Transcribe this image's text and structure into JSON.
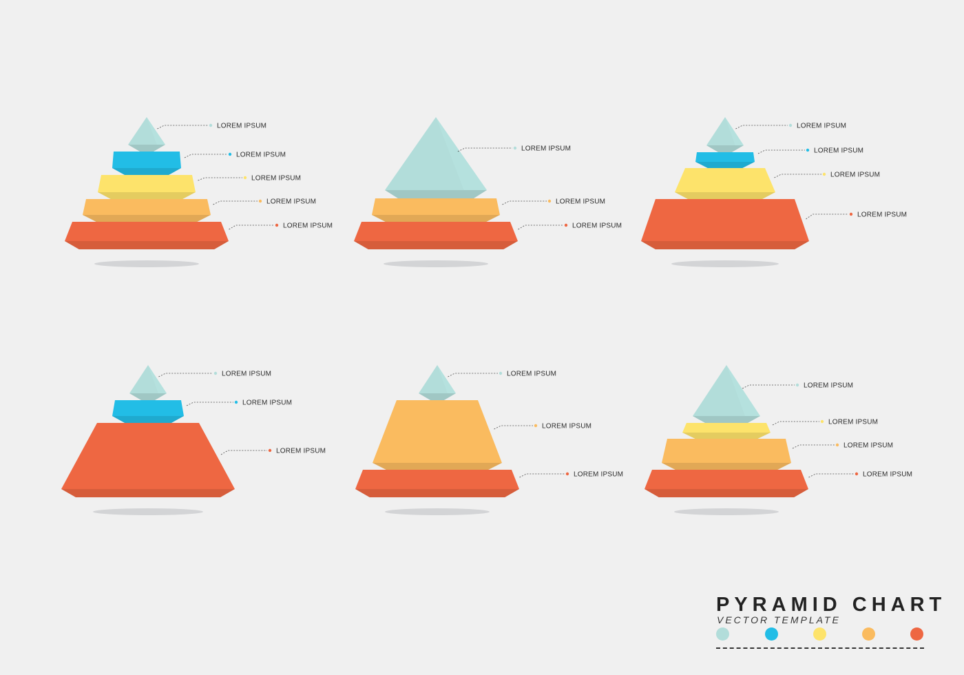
{
  "colors": {
    "teal": "#b2ddda",
    "blue": "#22bde6",
    "yellow": "#fde36b",
    "orange": "#fabb5f",
    "red": "#ee6742",
    "shadow": "#d3d4d6",
    "leader": "#4a4a4a"
  },
  "pyramids": [
    {
      "name": "pyramid-1",
      "tiers": [
        {
          "color": "teal",
          "label": "LOREM IPSUM"
        },
        {
          "color": "blue",
          "label": "LOREM IPSUM"
        },
        {
          "color": "yellow",
          "label": "LOREM IPSUM"
        },
        {
          "color": "orange",
          "label": "LOREM IPSUM"
        },
        {
          "color": "red",
          "label": "LOREM IPSUM"
        }
      ]
    },
    {
      "name": "pyramid-2",
      "tiers": [
        {
          "color": "teal",
          "label": "LOREM IPSUM"
        },
        {
          "color": "orange",
          "label": "LOREM IPSUM"
        },
        {
          "color": "red",
          "label": "LOREM IPSUM"
        }
      ]
    },
    {
      "name": "pyramid-3",
      "tiers": [
        {
          "color": "teal",
          "label": "LOREM IPSUM"
        },
        {
          "color": "blue",
          "label": "LOREM IPSUM"
        },
        {
          "color": "yellow",
          "label": "LOREM IPSUM"
        },
        {
          "color": "red",
          "label": "LOREM IPSUM"
        }
      ]
    },
    {
      "name": "pyramid-4",
      "tiers": [
        {
          "color": "teal",
          "label": "LOREM IPSUM"
        },
        {
          "color": "blue",
          "label": "LOREM IPSUM"
        },
        {
          "color": "red",
          "label": "LOREM IPSUM"
        }
      ]
    },
    {
      "name": "pyramid-5",
      "tiers": [
        {
          "color": "teal",
          "label": "LOREM IPSUM"
        },
        {
          "color": "orange",
          "label": "LOREM IPSUM"
        },
        {
          "color": "red",
          "label": "LOREM IPSUM"
        }
      ]
    },
    {
      "name": "pyramid-6",
      "tiers": [
        {
          "color": "teal",
          "label": "LOREM IPSUM"
        },
        {
          "color": "yellow",
          "label": "LOREM IPSUM"
        },
        {
          "color": "orange",
          "label": "LOREM IPSUM"
        },
        {
          "color": "red",
          "label": "LOREM IPSUM"
        }
      ]
    }
  ],
  "brand": {
    "title": "PYRAMID CHART",
    "subtitle": "VECTOR TEMPLATE",
    "swatches": [
      "teal",
      "blue",
      "yellow",
      "orange",
      "red"
    ]
  }
}
